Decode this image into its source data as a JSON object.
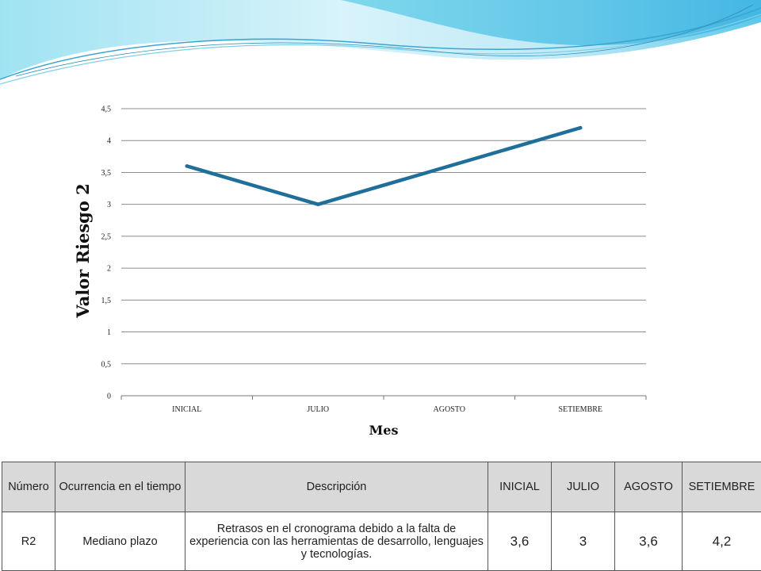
{
  "chart_data": {
    "type": "line",
    "categories": [
      "INICIAL",
      "JULIO",
      "AGOSTO",
      "SETIEMBRE"
    ],
    "series": [
      {
        "values": [
          3.6,
          3,
          3.6,
          4.2
        ],
        "color": "#1f6f9a"
      }
    ],
    "xlabel": "Mes",
    "ylabel": "Valor Riesgo 2",
    "ylim": [
      0,
      4.5
    ],
    "yticks": [
      "0",
      "0,5",
      "1",
      "1,5",
      "2",
      "2,5",
      "3",
      "3,5",
      "4",
      "4,5"
    ],
    "grid": true
  },
  "table": {
    "headers": [
      "Número",
      "Ocurrencia en el tiempo",
      "Descripción",
      "INICIAL",
      "JULIO",
      "AGOSTO",
      "SETIEMBRE"
    ],
    "rows": [
      [
        "R2",
        "Mediano plazo",
        "Retrasos en el cronograma debido a la falta de experiencia con las herramientas de desarrollo, lenguajes y tecnologías.",
        "3,6",
        "3",
        "3,6",
        "4,2"
      ]
    ]
  }
}
